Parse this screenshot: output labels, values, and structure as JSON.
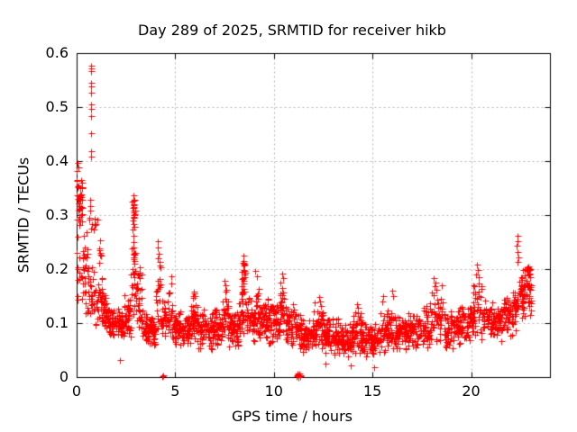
{
  "title": "Day 289 of 2025, SRMTID for receiver hikb",
  "colors": {
    "marker": "#ff0000",
    "grid": "#b4b4b4",
    "axis": "#000000",
    "background": "#ffffff"
  },
  "chart_data": {
    "type": "scatter",
    "title": "Day 289 of 2025, SRMTID for receiver hikb",
    "xlabel": "GPS time / hours",
    "ylabel": "SRMTID / TECUs",
    "xlim": [
      0,
      24
    ],
    "ylim": [
      0,
      0.6
    ],
    "xticks": [
      0,
      5,
      10,
      15,
      20
    ],
    "yticks": [
      0,
      0.1,
      0.2,
      0.3,
      0.4,
      0.5,
      0.6
    ],
    "xtick_labels": [
      "0",
      "5",
      "10",
      "15",
      "20"
    ],
    "ytick_labels": [
      "0",
      "0.1",
      "0.2",
      "0.3",
      "0.4",
      "0.5",
      "0.6"
    ],
    "grid": true,
    "legend": "none",
    "marker": "plus",
    "marker_color": "#ff0000",
    "series_name": "SRMTID",
    "density_scale": 1.6,
    "density_bins": [
      [
        0.0,
        0.3,
        0.25,
        0.395,
        26
      ],
      [
        0.0,
        0.35,
        0.12,
        0.25,
        8
      ],
      [
        0.25,
        0.6,
        0.1,
        0.28,
        16
      ],
      [
        0.55,
        0.95,
        0.09,
        0.22,
        16
      ],
      [
        0.6,
        1.0,
        0.26,
        0.345,
        7
      ],
      [
        0.95,
        1.3,
        0.09,
        0.2,
        18
      ],
      [
        1.05,
        1.25,
        0.2,
        0.3,
        5
      ],
      [
        1.3,
        1.6,
        0.08,
        0.16,
        20
      ],
      [
        1.6,
        2.0,
        0.07,
        0.14,
        26
      ],
      [
        2.0,
        2.4,
        0.065,
        0.13,
        28
      ],
      [
        2.4,
        2.75,
        0.07,
        0.155,
        24
      ],
      [
        2.75,
        3.0,
        0.1,
        0.27,
        16
      ],
      [
        2.8,
        2.95,
        0.27,
        0.34,
        10
      ],
      [
        3.0,
        3.3,
        0.08,
        0.21,
        18
      ],
      [
        3.3,
        3.7,
        0.06,
        0.13,
        26
      ],
      [
        3.7,
        4.0,
        0.055,
        0.12,
        24
      ],
      [
        4.0,
        4.25,
        0.07,
        0.245,
        14
      ],
      [
        4.25,
        4.6,
        0.06,
        0.16,
        20
      ],
      [
        4.6,
        4.85,
        0.07,
        0.205,
        14
      ],
      [
        4.85,
        5.25,
        0.05,
        0.12,
        26
      ],
      [
        5.25,
        5.75,
        0.05,
        0.125,
        30
      ],
      [
        5.75,
        6.1,
        0.055,
        0.155,
        26
      ],
      [
        6.1,
        6.5,
        0.05,
        0.14,
        26
      ],
      [
        6.5,
        7.0,
        0.045,
        0.125,
        32
      ],
      [
        7.0,
        7.4,
        0.05,
        0.135,
        26
      ],
      [
        7.4,
        7.7,
        0.06,
        0.175,
        18
      ],
      [
        7.7,
        8.2,
        0.05,
        0.13,
        30
      ],
      [
        8.2,
        8.45,
        0.07,
        0.16,
        16
      ],
      [
        8.35,
        8.55,
        0.14,
        0.22,
        12
      ],
      [
        8.55,
        9.0,
        0.06,
        0.16,
        26
      ],
      [
        9.0,
        9.5,
        0.06,
        0.17,
        30
      ],
      [
        9.5,
        10.0,
        0.055,
        0.15,
        32
      ],
      [
        10.0,
        10.3,
        0.06,
        0.145,
        18
      ],
      [
        10.3,
        10.6,
        0.07,
        0.185,
        16
      ],
      [
        10.6,
        11.1,
        0.05,
        0.14,
        30
      ],
      [
        11.1,
        11.5,
        0.04,
        0.125,
        24
      ],
      [
        11.5,
        12.0,
        0.04,
        0.115,
        30
      ],
      [
        12.0,
        12.5,
        0.045,
        0.145,
        30
      ],
      [
        12.5,
        13.0,
        0.04,
        0.12,
        32
      ],
      [
        13.0,
        13.5,
        0.035,
        0.11,
        32
      ],
      [
        13.5,
        14.0,
        0.035,
        0.105,
        32
      ],
      [
        14.0,
        14.4,
        0.04,
        0.13,
        24
      ],
      [
        14.4,
        14.9,
        0.035,
        0.11,
        30
      ],
      [
        14.9,
        15.4,
        0.03,
        0.105,
        30
      ],
      [
        15.4,
        15.8,
        0.04,
        0.125,
        24
      ],
      [
        15.8,
        16.3,
        0.04,
        0.13,
        26
      ],
      [
        16.3,
        16.8,
        0.045,
        0.12,
        30
      ],
      [
        16.8,
        17.3,
        0.05,
        0.125,
        30
      ],
      [
        17.3,
        17.9,
        0.05,
        0.135,
        32
      ],
      [
        17.9,
        18.6,
        0.06,
        0.17,
        30
      ],
      [
        18.6,
        19.2,
        0.05,
        0.13,
        32
      ],
      [
        19.2,
        19.7,
        0.055,
        0.135,
        30
      ],
      [
        19.7,
        20.1,
        0.06,
        0.14,
        24
      ],
      [
        20.1,
        20.6,
        0.065,
        0.185,
        24
      ],
      [
        20.6,
        21.1,
        0.06,
        0.145,
        28
      ],
      [
        21.1,
        21.6,
        0.065,
        0.14,
        28
      ],
      [
        21.6,
        22.1,
        0.07,
        0.155,
        28
      ],
      [
        22.1,
        22.4,
        0.08,
        0.185,
        18
      ],
      [
        22.4,
        22.65,
        0.1,
        0.22,
        14
      ],
      [
        22.55,
        23.05,
        0.1,
        0.21,
        28
      ]
    ],
    "feature_points": [
      [
        0.71,
        0.577
      ],
      [
        0.735,
        0.572
      ],
      [
        0.72,
        0.566
      ],
      [
        0.71,
        0.545
      ],
      [
        0.73,
        0.539
      ],
      [
        0.72,
        0.527
      ],
      [
        0.715,
        0.505
      ],
      [
        0.73,
        0.497
      ],
      [
        0.72,
        0.484
      ],
      [
        0.735,
        0.452
      ],
      [
        0.71,
        0.419
      ],
      [
        0.725,
        0.408
      ],
      [
        0.05,
        0.397
      ],
      [
        0.1,
        0.388
      ],
      [
        0.02,
        0.382
      ],
      [
        2.87,
        0.337
      ],
      [
        2.86,
        0.315
      ],
      [
        2.88,
        0.308
      ],
      [
        2.87,
        0.3
      ],
      [
        2.89,
        0.295
      ],
      [
        2.85,
        0.29
      ],
      [
        2.87,
        0.283
      ],
      [
        2.9,
        0.262
      ],
      [
        2.86,
        0.25
      ],
      [
        2.88,
        0.24
      ],
      [
        2.87,
        0.228
      ],
      [
        2.91,
        0.215
      ],
      [
        4.12,
        0.252
      ],
      [
        4.1,
        0.24
      ],
      [
        4.15,
        0.228
      ],
      [
        4.33,
        0.002
      ],
      [
        4.39,
        0.003
      ],
      [
        2.2,
        0.032
      ],
      [
        13.9,
        0.022
      ],
      [
        15.1,
        0.018
      ],
      [
        12.6,
        0.025
      ],
      [
        5.95,
        0.158
      ],
      [
        6.0,
        0.15
      ],
      [
        7.5,
        0.178
      ],
      [
        7.55,
        0.17
      ],
      [
        8.45,
        0.225
      ],
      [
        8.44,
        0.215
      ],
      [
        8.47,
        0.207
      ],
      [
        8.45,
        0.198
      ],
      [
        8.48,
        0.19
      ],
      [
        8.43,
        0.182
      ],
      [
        8.46,
        0.173
      ],
      [
        9.05,
        0.196
      ],
      [
        9.15,
        0.186
      ],
      [
        10.4,
        0.192
      ],
      [
        10.45,
        0.183
      ],
      [
        10.35,
        0.175
      ],
      [
        11.14,
        0.004
      ],
      [
        11.17,
        0.002
      ],
      [
        11.2,
        0.005
      ],
      [
        11.23,
        0.001
      ],
      [
        11.26,
        0.003
      ],
      [
        11.29,
        0.006
      ],
      [
        11.32,
        0.002
      ],
      [
        11.35,
        0.004
      ],
      [
        11.21,
        0.007
      ],
      [
        11.24,
        0.0
      ],
      [
        12.3,
        0.148
      ],
      [
        12.35,
        0.14
      ],
      [
        14.2,
        0.135
      ],
      [
        14.25,
        0.128
      ],
      [
        15.55,
        0.15
      ],
      [
        15.5,
        0.14
      ],
      [
        16.0,
        0.16
      ],
      [
        16.05,
        0.15
      ],
      [
        18.1,
        0.183
      ],
      [
        18.2,
        0.175
      ],
      [
        18.15,
        0.168
      ],
      [
        18.5,
        0.17
      ],
      [
        20.3,
        0.208
      ],
      [
        20.35,
        0.198
      ],
      [
        20.25,
        0.19
      ],
      [
        20.4,
        0.185
      ],
      [
        22.35,
        0.262
      ],
      [
        22.37,
        0.252
      ],
      [
        22.33,
        0.243
      ],
      [
        22.36,
        0.232
      ],
      [
        22.38,
        0.222
      ],
      [
        22.34,
        0.214
      ],
      [
        22.82,
        0.2
      ],
      [
        22.85,
        0.199
      ],
      [
        22.88,
        0.201
      ],
      [
        22.84,
        0.197
      ],
      [
        22.87,
        0.203
      ],
      [
        22.9,
        0.205
      ],
      [
        22.95,
        0.198
      ],
      [
        22.92,
        0.19
      ],
      [
        23.0,
        0.185
      ],
      [
        23.02,
        0.17
      ]
    ]
  }
}
